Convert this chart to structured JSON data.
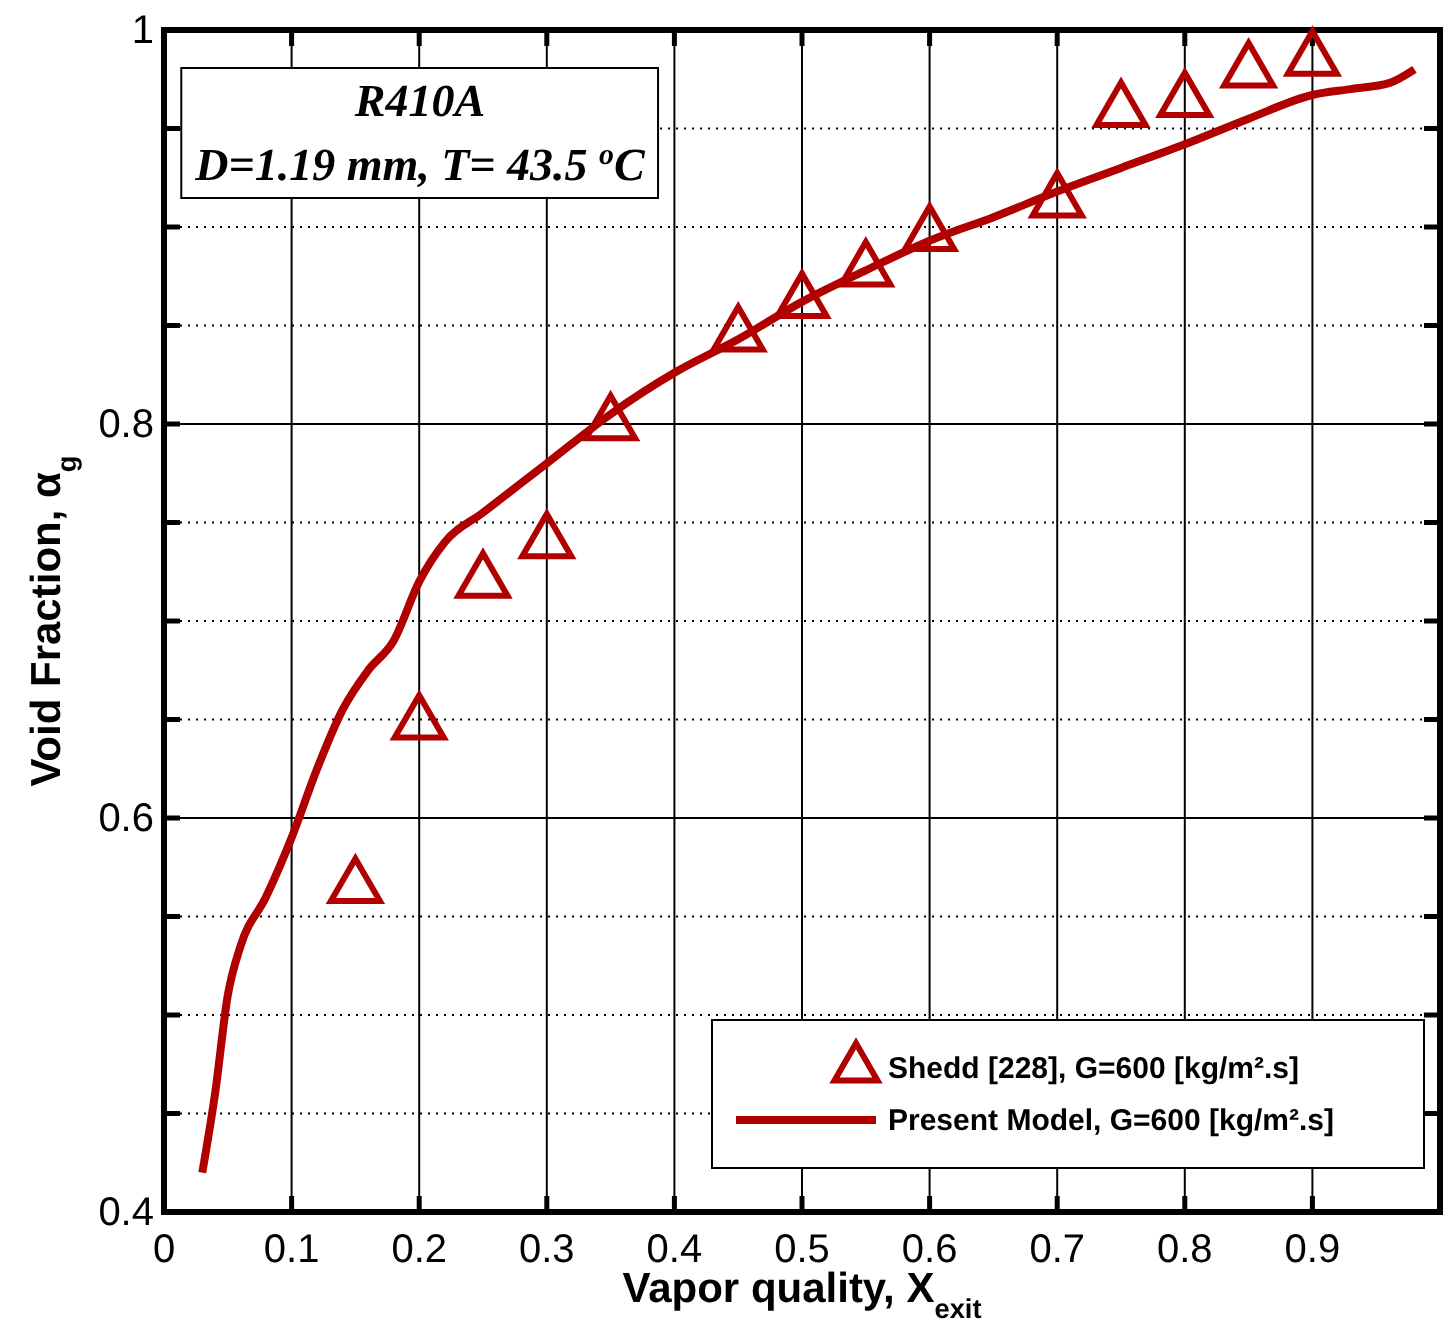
{
  "chart_data": {
    "type": "scatter",
    "xlabel": "Vapor quality, X$_{exit}$",
    "ylabel": "Void Fraction, α$_{g}$",
    "annotations": [
      "R410A",
      "D=1.19 mm, T= 43.5 $^{o}$C"
    ],
    "xlim": [
      0,
      1
    ],
    "ylim": [
      0.4,
      1
    ],
    "xticks": [
      0,
      0.1,
      0.2,
      0.3,
      0.4,
      0.5,
      0.6,
      0.7,
      0.8,
      0.9,
      {
        "value": 1,
        "label": null
      }
    ],
    "yticks": [
      0.4,
      {
        "value": 0.45,
        "label": null
      },
      {
        "value": 0.5,
        "label": null
      },
      {
        "value": 0.55,
        "label": null
      },
      0.6,
      {
        "value": 0.65,
        "label": null
      },
      {
        "value": 0.7,
        "label": null
      },
      {
        "value": 0.75,
        "label": null
      },
      0.8,
      {
        "value": 0.85,
        "label": null
      },
      {
        "value": 0.9,
        "label": null
      },
      {
        "value": 0.95,
        "label": null
      },
      {
        "value": 1,
        "label": "1"
      }
    ],
    "grid": true,
    "legend": "bottom right",
    "series": [
      {
        "name": "Shedd [228], G=600 [kg/m².s]",
        "marker": "triangle",
        "color": "#b00000",
        "x": [
          0.15,
          0.2,
          0.25,
          0.3,
          0.35,
          0.45,
          0.5,
          0.55,
          0.6,
          0.7,
          0.75,
          0.8,
          0.85,
          0.9
        ],
        "values": [
          0.565,
          0.648,
          0.72,
          0.74,
          0.8,
          0.845,
          0.862,
          0.878,
          0.896,
          0.913,
          0.959,
          0.964,
          0.979,
          0.985
        ]
      },
      {
        "name": "Present Model, G=600 [kg/m².s]",
        "type": "line",
        "marker": "none",
        "line_style": "solid",
        "color": "#b00000",
        "x": [
          0.03,
          0.04,
          0.05,
          0.06,
          0.08,
          0.1,
          0.12,
          0.14,
          0.16,
          0.18,
          0.2,
          0.22,
          0.25,
          0.3,
          0.35,
          0.4,
          0.45,
          0.5,
          0.55,
          0.6,
          0.65,
          0.7,
          0.75,
          0.8,
          0.85,
          0.9,
          0.93,
          0.96,
          0.98
        ],
        "values": [
          0.42,
          0.46,
          0.51,
          0.535,
          0.56,
          0.59,
          0.625,
          0.655,
          0.675,
          0.69,
          0.72,
          0.74,
          0.755,
          0.78,
          0.805,
          0.826,
          0.843,
          0.862,
          0.878,
          0.893,
          0.905,
          0.918,
          0.93,
          0.942,
          0.955,
          0.967,
          0.97,
          0.973,
          0.98
        ]
      }
    ]
  }
}
